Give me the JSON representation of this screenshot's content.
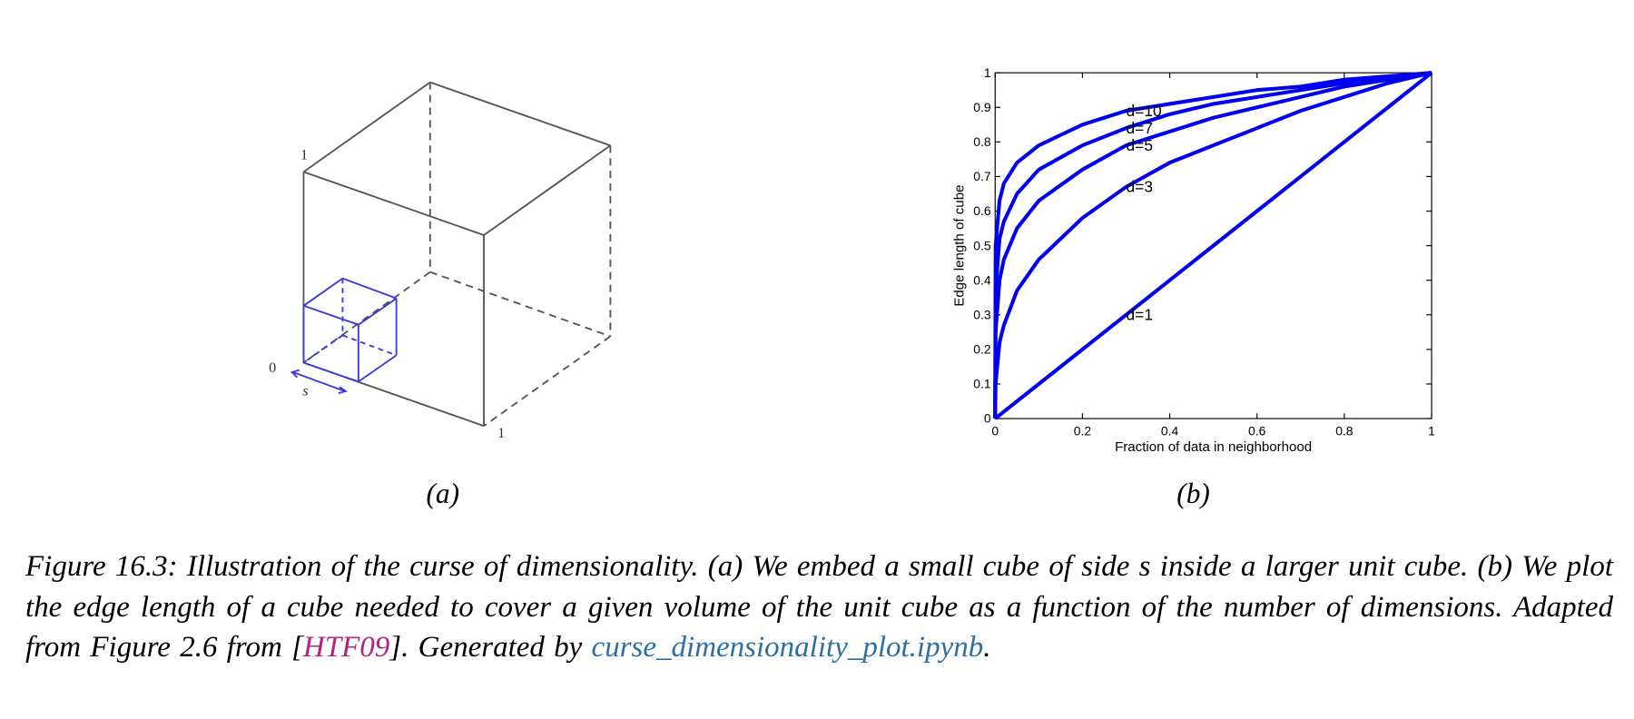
{
  "figure_a": {
    "labels": [
      "1",
      "0",
      "s",
      "1"
    ]
  },
  "chart_data": {
    "type": "line",
    "x_label": "Fraction of data in neighborhood",
    "y_label": "Edge length of cube",
    "x": [
      0,
      0.001,
      0.01,
      0.02,
      0.05,
      0.1,
      0.2,
      0.3,
      0.4,
      0.5,
      0.6,
      0.7,
      0.8,
      0.9,
      1
    ],
    "series": [
      {
        "name": "d=10",
        "color": "#0000ee",
        "values": [
          0,
          0.5,
          0.63,
          0.68,
          0.74,
          0.79,
          0.85,
          0.89,
          0.91,
          0.93,
          0.95,
          0.96,
          0.98,
          0.99,
          1
        ]
      },
      {
        "name": "d=7",
        "color": "#0000ee",
        "values": [
          0,
          0.37,
          0.52,
          0.57,
          0.65,
          0.72,
          0.79,
          0.84,
          0.88,
          0.91,
          0.93,
          0.95,
          0.97,
          0.98,
          1
        ]
      },
      {
        "name": "d=5",
        "color": "#0000ee",
        "values": [
          0,
          0.25,
          0.4,
          0.46,
          0.55,
          0.63,
          0.72,
          0.79,
          0.83,
          0.87,
          0.9,
          0.93,
          0.96,
          0.98,
          1
        ]
      },
      {
        "name": "d=3",
        "color": "#0000ee",
        "values": [
          0,
          0.1,
          0.22,
          0.27,
          0.37,
          0.46,
          0.58,
          0.67,
          0.74,
          0.79,
          0.84,
          0.89,
          0.93,
          0.97,
          1
        ]
      },
      {
        "name": "d=1",
        "color": "#0000ee",
        "values": [
          0,
          0.001,
          0.01,
          0.02,
          0.05,
          0.1,
          0.2,
          0.3,
          0.4,
          0.5,
          0.6,
          0.7,
          0.8,
          0.9,
          1
        ]
      }
    ],
    "xlim": [
      0,
      1
    ],
    "ylim": [
      0,
      1
    ],
    "xticks": [
      0,
      0.2,
      0.4,
      0.6,
      0.8,
      1
    ],
    "yticks": [
      0,
      0.1,
      0.2,
      0.3,
      0.4,
      0.5,
      0.6,
      0.7,
      0.8,
      0.9,
      1
    ]
  },
  "subcaptions": [
    "(a)",
    "(b)"
  ],
  "caption": {
    "text_1": "Figure 16.3: Illustration of the curse of dimensionality. (a) We embed a small cube of side s inside a larger unit cube. (b) We plot the edge length of a cube needed to cover a given volume of the unit cube as a function of the number of dimensions. Adapted from Figure 2.6 from [",
    "citation": "HTF09",
    "text_2": "]. Generated by ",
    "link": "curse_dimensionality_plot.ipynb",
    "text_3": "."
  }
}
